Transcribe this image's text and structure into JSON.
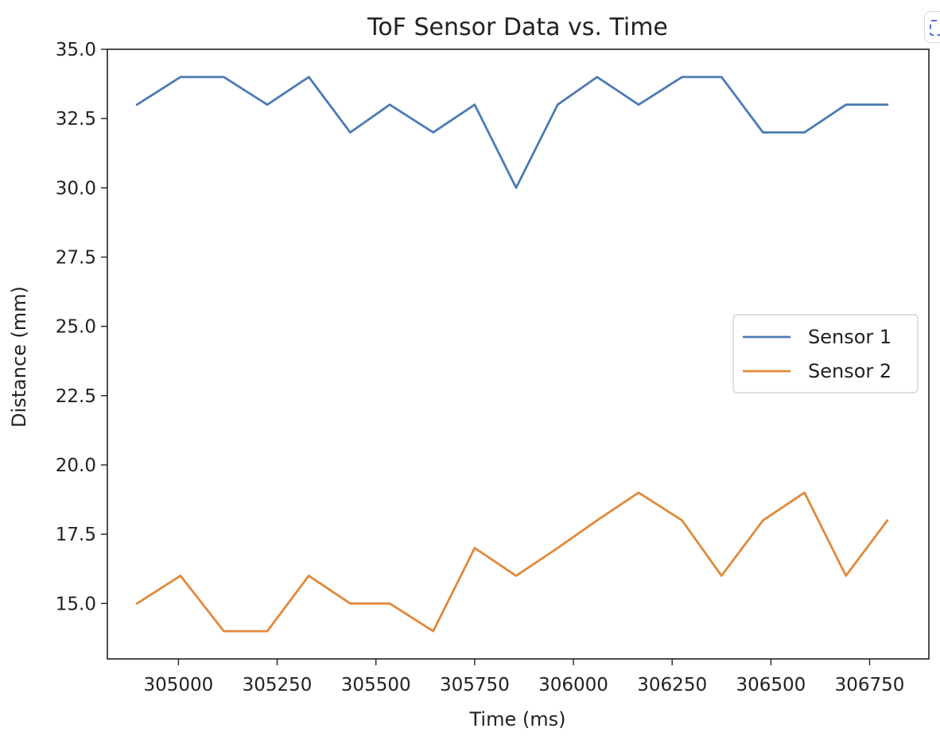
{
  "chart_data": {
    "type": "line",
    "title": "ToF Sensor Data vs. Time",
    "xlabel": "Time (ms)",
    "ylabel": "Distance (mm)",
    "xlim": [
      304820,
      306900
    ],
    "ylim": [
      13,
      35
    ],
    "xticks": [
      305000,
      305250,
      305500,
      305750,
      306000,
      306250,
      306500,
      306750
    ],
    "yticks": [
      15.0,
      17.5,
      20.0,
      22.5,
      25.0,
      27.5,
      30.0,
      32.5,
      35.0
    ],
    "grid": false,
    "legend_position": "center-right",
    "x": [
      304895,
      305005,
      305115,
      305225,
      305330,
      305435,
      305535,
      305645,
      305750,
      305855,
      305960,
      306060,
      306165,
      306275,
      306375,
      306480,
      306585,
      306690,
      306795
    ],
    "series": [
      {
        "name": "Sensor 1",
        "color": "#4c7bb5",
        "values": [
          33,
          34,
          34,
          33,
          34,
          32,
          33,
          32,
          33,
          30,
          33,
          34,
          33,
          34,
          34,
          32,
          32,
          33,
          33
        ]
      },
      {
        "name": "Sensor 2",
        "color": "#e0893b",
        "values": [
          15,
          16,
          14,
          14,
          16,
          15,
          15,
          14,
          17,
          16,
          17,
          18,
          19,
          18,
          16,
          18,
          19,
          16,
          18
        ]
      }
    ]
  }
}
